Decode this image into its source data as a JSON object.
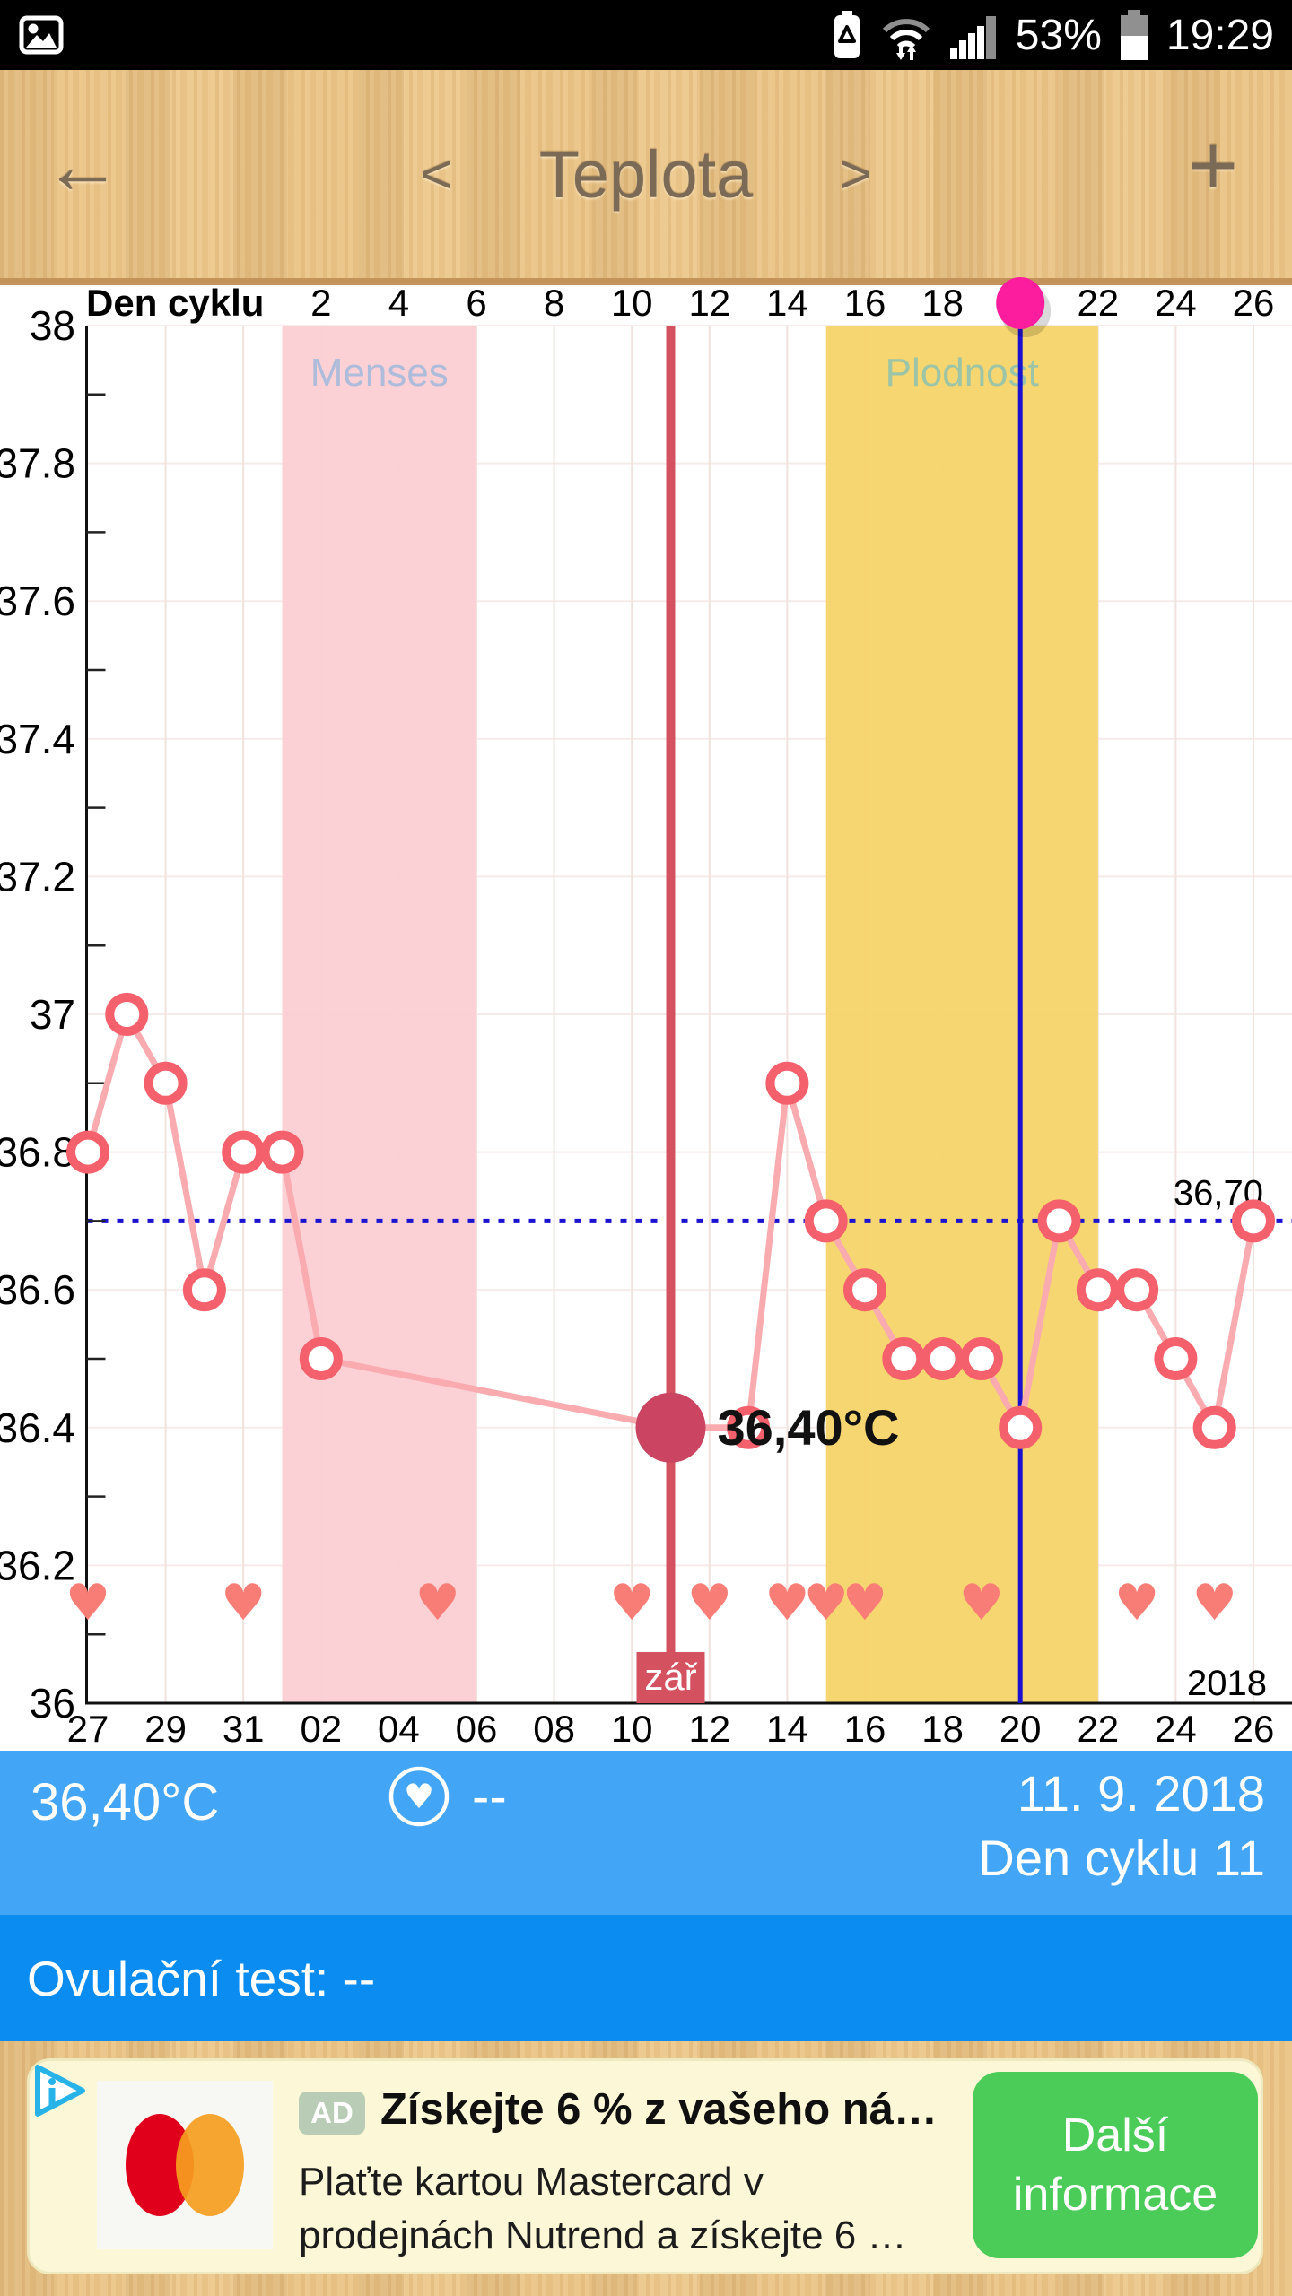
{
  "status_bar": {
    "battery_percent": "53%",
    "time": "19:29"
  },
  "header": {
    "back_glyph": "←",
    "prev_glyph": "<",
    "title": "Teplota",
    "next_glyph": ">",
    "add_glyph": "+"
  },
  "chart_data": {
    "type": "line",
    "series_name": "Teplota (°C)",
    "y_min": 36,
    "y_max": 38,
    "y_labels": [
      "38",
      "37.8",
      "37.6",
      "37.4",
      "37.2",
      "37",
      "36.8",
      "36.6",
      "36.4",
      "36.2",
      "36"
    ],
    "top_axis_title": "Den cyklu",
    "cycle_day_ticks": [
      2,
      4,
      6,
      8,
      10,
      12,
      14,
      16,
      18,
      20,
      22,
      24,
      26
    ],
    "date_to_index_offset": 4,
    "x_labels": [
      "27",
      "29",
      "31",
      "02",
      "04",
      "06",
      "08",
      "10",
      "12",
      "14",
      "16",
      "18",
      "20",
      "22",
      "24",
      "26"
    ],
    "n_points": 31,
    "points": [
      [
        0,
        36.8
      ],
      [
        1,
        37.0
      ],
      [
        2,
        36.9
      ],
      [
        3,
        36.6
      ],
      [
        4,
        36.8
      ],
      [
        5,
        36.8
      ],
      [
        6,
        36.5
      ],
      [
        15,
        36.4
      ],
      [
        17,
        36.4
      ],
      [
        18,
        36.9
      ],
      [
        19,
        36.7
      ],
      [
        20,
        36.6
      ],
      [
        21,
        36.5
      ],
      [
        22,
        36.5
      ],
      [
        23,
        36.5
      ],
      [
        24,
        36.4
      ],
      [
        25,
        36.7
      ],
      [
        26,
        36.6
      ],
      [
        27,
        36.6
      ],
      [
        28,
        36.5
      ],
      [
        29,
        36.4
      ],
      [
        30,
        36.7
      ]
    ],
    "selected": {
      "index": 15,
      "value": 36.4,
      "label": "36,40°C"
    },
    "bands": [
      {
        "label": "Menses",
        "from": 5,
        "to": 10,
        "fill": "#fbcfd4",
        "label_color": "#aebcdb"
      },
      {
        "label": "Plodnost",
        "from": 19,
        "to": 26,
        "fill": "#f5d469",
        "label_color": "#9cc4a6"
      }
    ],
    "vlines": [
      {
        "index": 15,
        "color": "#d4515f",
        "width": 10,
        "badge": "zář"
      },
      {
        "index": 24,
        "color": "#1b12d1",
        "width": 5
      }
    ],
    "hline": {
      "value": 36.7,
      "label": "36,70",
      "color": "#1b12d1"
    },
    "heart_indices": [
      0,
      4,
      9,
      14,
      16,
      18,
      19,
      20,
      23,
      27,
      29
    ],
    "heart_color": "#f87d76",
    "line_color": "#f9abb0",
    "point_ring_color": "#f4606b",
    "selected_color": "#cb4562",
    "ovulation_marker_index": 24,
    "ovulation_marker_color": "#fb1d9e",
    "year_label": "2018"
  },
  "info_bar": {
    "temperature": "36,40°C",
    "mood_value": "--",
    "date": "11. 9. 2018",
    "cycle_day": "Den cyklu 11"
  },
  "ovulation_bar": {
    "text": "Ovulační test: --"
  },
  "ad": {
    "badge": "AD",
    "title": "Získejte 6 % z vašeho ná…",
    "body_line1": "Plaťte kartou Mastercard v",
    "body_line2": "prodejnách Nutrend a získejte 6 …",
    "cta_line1": "Další",
    "cta_line2": "informace"
  },
  "colors": {
    "bar1": "#42a5f5",
    "bar2": "#0a8cf0",
    "header_border": "#c3935a",
    "cta_green": "#4bcc59"
  }
}
